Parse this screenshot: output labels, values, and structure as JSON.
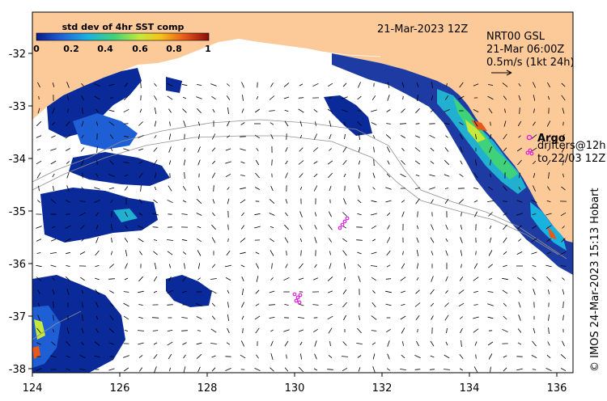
{
  "header": {
    "date_label": "21-Mar-2023 12Z",
    "product_label": "NRT00 GSL",
    "current_time_label": "21-Mar 06:00Z",
    "scale_label": "0.5m/s (1kt 24h)"
  },
  "colorbar": {
    "title": "std dev of 4hr SST comp",
    "ticks": [
      "0",
      "0.2",
      "0.4",
      "0.6",
      "0.8",
      "1"
    ],
    "colors": [
      "#0a1a8c",
      "#1f5fd6",
      "#19b3e0",
      "#3fd27a",
      "#c6e83a",
      "#f6c21b",
      "#e8581a",
      "#8c0a0a"
    ]
  },
  "legend": {
    "argo_label": "Argo",
    "drifters_label": "drifters@12h",
    "drifters_sub": "to 22/03 12Z",
    "marker_color": "#e020e0"
  },
  "credit": "© IMOS 24-Mar-2023 15:13 Hobart",
  "axes": {
    "x_ticks": [
      "124",
      "126",
      "128",
      "130",
      "132",
      "134",
      "136"
    ],
    "y_ticks": [
      "-32",
      "-33",
      "-34",
      "-35",
      "-36",
      "-37",
      "-38"
    ]
  },
  "colors": {
    "land": "#fcc999",
    "ocean": "#ffffff",
    "sst_low": "#0a2a9a",
    "sst_mid": "#22c0c0",
    "sst_high": "#e8581a"
  }
}
